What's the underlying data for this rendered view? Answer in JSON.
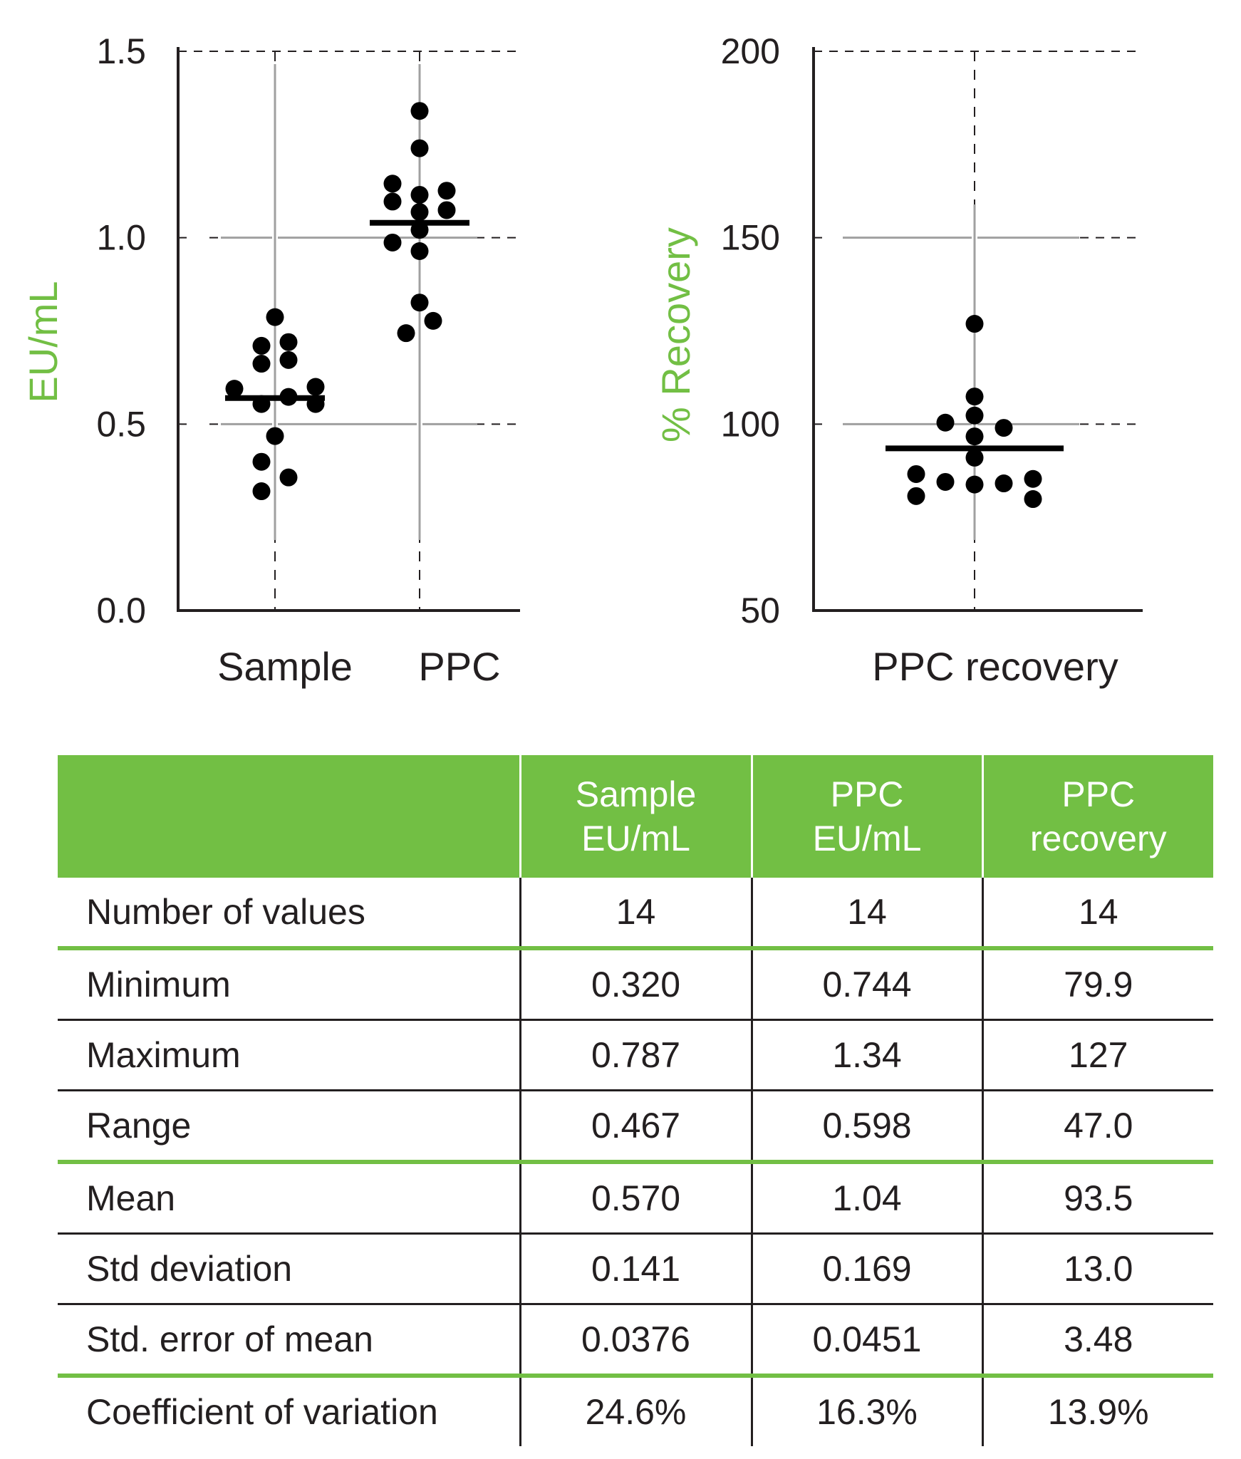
{
  "colors": {
    "accent_green": "#72bf44",
    "text": "#231f20",
    "grid_gray": "#a0a0a0",
    "header_text": "#ffffff"
  },
  "chart_data": [
    {
      "type": "scatter",
      "subtype": "strip-plot-with-mean",
      "title": "",
      "ylabel": "EU/mL",
      "xlabel": "",
      "ylim": [
        0.0,
        1.5
      ],
      "yticks": [
        "0.0",
        "0.5",
        "1.0",
        "1.5"
      ],
      "ytick_values": [
        0.0,
        0.5,
        1.0,
        1.5
      ],
      "categories": [
        "Sample",
        "PPC"
      ],
      "grid": "dashed at ticks; gray crosshair lines",
      "series": [
        {
          "name": "Sample",
          "mean": 0.57,
          "values": [
            0.787,
            0.71,
            0.72,
            0.662,
            0.672,
            0.595,
            0.6,
            0.573,
            0.554,
            0.554,
            0.468,
            0.399,
            0.357,
            0.32
          ],
          "jitter": [
            0,
            -1,
            1,
            -1,
            1,
            -3,
            3,
            1,
            -1,
            3,
            0,
            -1,
            1,
            -1
          ]
        },
        {
          "name": "PPC",
          "mean": 1.04,
          "values": [
            1.34,
            1.24,
            1.145,
            1.097,
            1.126,
            1.074,
            1.115,
            1.069,
            1.021,
            0.987,
            0.964,
            0.826,
            0.777,
            0.744
          ],
          "jitter": [
            0,
            0,
            -2,
            -2,
            2,
            2,
            0,
            0,
            0,
            -2,
            0,
            0,
            1,
            -1
          ]
        }
      ]
    },
    {
      "type": "scatter",
      "subtype": "strip-plot-with-mean",
      "title": "",
      "ylabel": "% Recovery",
      "xlabel": "",
      "ylim": [
        50,
        200
      ],
      "yticks": [
        "50",
        "100",
        "150",
        "200"
      ],
      "ytick_values": [
        50,
        100,
        150,
        200
      ],
      "categories": [
        "PPC recovery"
      ],
      "grid": "dashed at ticks; gray crosshair lines",
      "series": [
        {
          "name": "PPC recovery",
          "mean": 93.5,
          "values": [
            126.9,
            107.4,
            102.3,
            100.4,
            99.0,
            96.7,
            91.0,
            86.6,
            80.7,
            84.5,
            83.8,
            84.1,
            85.3,
            79.9
          ],
          "jitter": [
            0,
            0,
            0,
            -1,
            1,
            0,
            0,
            -2,
            -2,
            -1,
            0,
            1,
            2,
            2
          ]
        }
      ]
    }
  ],
  "table": {
    "headers": [
      {
        "line1": "",
        "line2": ""
      },
      {
        "line1": "Sample",
        "line2": "EU/mL"
      },
      {
        "line1": "PPC",
        "line2": "EU/mL"
      },
      {
        "line1": "PPC",
        "line2": "recovery"
      }
    ],
    "rows": [
      {
        "label": "Number of values",
        "values": [
          "14",
          "14",
          "14"
        ],
        "separator": "green"
      },
      {
        "label": "Minimum",
        "values": [
          "0.320",
          "0.744",
          "79.9"
        ],
        "separator": "black"
      },
      {
        "label": "Maximum",
        "values": [
          "0.787",
          "1.34",
          "127"
        ],
        "separator": "black"
      },
      {
        "label": "Range",
        "values": [
          "0.467",
          "0.598",
          "47.0"
        ],
        "separator": "green"
      },
      {
        "label": "Mean",
        "values": [
          "0.570",
          "1.04",
          "93.5"
        ],
        "separator": "black"
      },
      {
        "label": "Std deviation",
        "values": [
          "0.141",
          "0.169",
          "13.0"
        ],
        "separator": "black"
      },
      {
        "label": "Std. error of mean",
        "values": [
          "0.0376",
          "0.0451",
          "3.48"
        ],
        "separator": "green"
      },
      {
        "label": "Coefficient of variation",
        "values": [
          "24.6%",
          "16.3%",
          "13.9%"
        ],
        "separator": "none"
      }
    ]
  }
}
